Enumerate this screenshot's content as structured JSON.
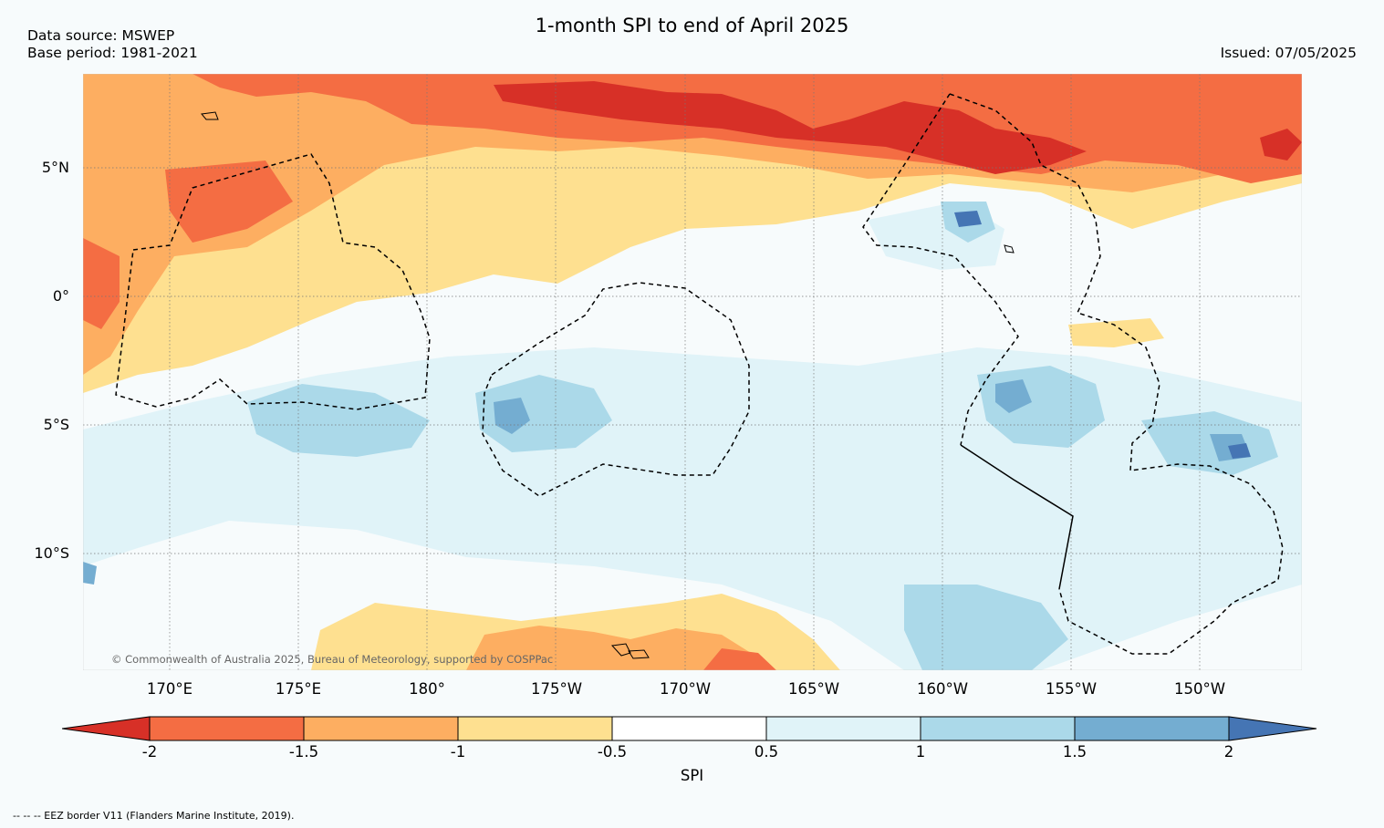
{
  "title": "1-month SPI to end of April 2025",
  "data_source": "Data source: MSWEP",
  "base_period": "Base period: 1981-2021",
  "issued": "Issued: 07/05/2025",
  "lat_labels": [
    "5°N",
    "0°",
    "5°S",
    "10°S"
  ],
  "lon_labels": [
    "170°E",
    "175°E",
    "180°",
    "175°W",
    "170°W",
    "165°W",
    "160°W",
    "155°W",
    "150°W"
  ],
  "colorbar": {
    "label": "SPI",
    "ticks": [
      "-2",
      "-1.5",
      "-1",
      "-0.5",
      "0.5",
      "1",
      "1.5",
      "2"
    ],
    "colors": [
      "#d73027",
      "#f46d43",
      "#fdae61",
      "#fee090",
      "#ffffff",
      "#e0f3f8",
      "#abd9e9",
      "#74add1",
      "#4575b4"
    ]
  },
  "copyright": "© Commonwealth of Australia 2025, Bureau of Meteorology, supported by COSPPac",
  "eez_note": "-- -- -- EEZ border V11 (Flanders Marine Institute, 2019)."
}
